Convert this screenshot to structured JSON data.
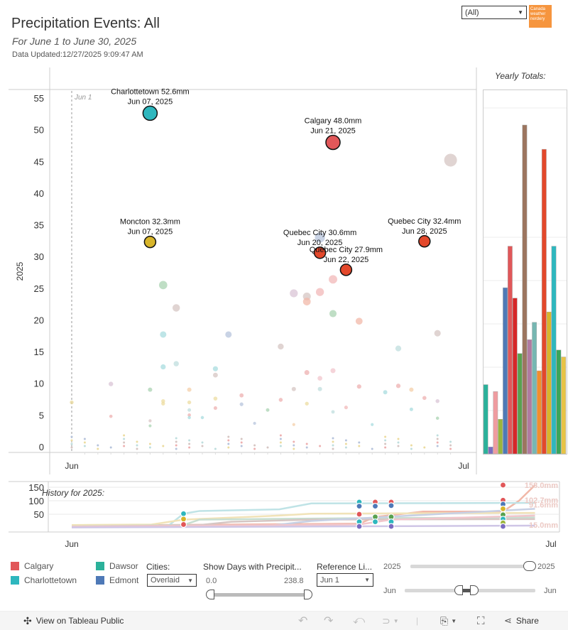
{
  "header": {
    "title": "Precipitation Events: All",
    "subtitle": "For June 1 to June 30, 2025",
    "updated": "Data Updated:12/27/2025 9:09:47 AM",
    "city_filter": "(All)",
    "logo_text": "Canada weather nerdery"
  },
  "yearly_totals_title": "Yearly Totals:",
  "history_title": "History for 2025:",
  "colors": {
    "Calgary": "#e15759",
    "Charlottetown": "#2eb7be",
    "Dawson": "#2bb19a",
    "Edmonton": "#4e79b7",
    "Moncton": "#d8b52a",
    "Quebec City": "#e3482b",
    "neutral": "#b8a9a4"
  },
  "chart_data": [
    {
      "type": "scatter",
      "title": "Precipitation Events: All",
      "xlabel": "",
      "ylabel": "2025",
      "x_ticks": [
        "Jun",
        "Jul"
      ],
      "y_ticks": [
        0,
        5,
        10,
        15,
        20,
        25,
        30,
        35,
        40,
        45,
        50,
        55
      ],
      "ylim": [
        0,
        56
      ],
      "xlim_days": [
        1,
        31
      ],
      "reference_line": {
        "label": "Jun 1",
        "day": 1
      },
      "highlighted": [
        {
          "city": "Charlottetown",
          "value": 52.6,
          "day": 7,
          "label": "Charlottetown 52.6mm",
          "date": "Jun 07, 2025"
        },
        {
          "city": "Moncton",
          "value": 32.3,
          "day": 7,
          "label": "Moncton 32.3mm",
          "date": "Jun 07, 2025"
        },
        {
          "city": "Calgary",
          "value": 48.0,
          "day": 21,
          "label": "Calgary 48.0mm",
          "date": "Jun 21, 2025"
        },
        {
          "city": "Quebec City",
          "value": 30.6,
          "day": 20,
          "label": "Quebec City 30.6mm",
          "date": "Jun 20, 2025"
        },
        {
          "city": "Quebec City",
          "value": 27.9,
          "day": 22,
          "label": "Quebec City 27.9mm",
          "date": "Jun 22, 2025"
        },
        {
          "city": "Quebec City",
          "value": 32.4,
          "day": 28,
          "label": "Quebec City 32.4mm",
          "date": "Jun 28, 2025"
        }
      ],
      "faded_points": [
        {
          "day": 1,
          "value": 7.0,
          "color": "#e8d89a"
        },
        {
          "day": 4,
          "value": 9.9,
          "color": "#d9c4d6"
        },
        {
          "day": 4,
          "value": 4.8,
          "color": "#eeb0b0"
        },
        {
          "day": 7,
          "value": 9.0,
          "color": "#a9d3b2"
        },
        {
          "day": 7,
          "value": 4.1,
          "color": "#d9c4c4"
        },
        {
          "day": 7,
          "value": 3.3,
          "color": "#a9d3b2"
        },
        {
          "day": 8,
          "value": 25.5,
          "color": "#a9d3b2"
        },
        {
          "day": 8,
          "value": 17.7,
          "color": "#a8dcdf"
        },
        {
          "day": 8,
          "value": 12.6,
          "color": "#a8dcdf"
        },
        {
          "day": 8,
          "value": 7.2,
          "color": "#ecdca0"
        },
        {
          "day": 8,
          "value": 6.8,
          "color": "#ecdca0"
        },
        {
          "day": 9,
          "value": 21.9,
          "color": "#d6c6c3"
        },
        {
          "day": 9,
          "value": 13.1,
          "color": "#bfdede"
        },
        {
          "day": 10,
          "value": 9.0,
          "color": "#f4cfa8"
        },
        {
          "day": 10,
          "value": 7.0,
          "color": "#ecdca0"
        },
        {
          "day": 10,
          "value": 5.8,
          "color": "#bfdede"
        },
        {
          "day": 10,
          "value": 5.0,
          "color": "#eeb0b0"
        },
        {
          "day": 10,
          "value": 4.6,
          "color": "#a8dcdf"
        },
        {
          "day": 11,
          "value": 4.6,
          "color": "#a8dcdf"
        },
        {
          "day": 12,
          "value": 12.3,
          "color": "#a8dcdf"
        },
        {
          "day": 12,
          "value": 11.3,
          "color": "#d6c6c3"
        },
        {
          "day": 12,
          "value": 7.6,
          "color": "#ecdca0"
        },
        {
          "day": 12,
          "value": 6.1,
          "color": "#eeb0b0"
        },
        {
          "day": 13,
          "value": 17.7,
          "color": "#b7c4dc"
        },
        {
          "day": 14,
          "value": 8.1,
          "color": "#eeb0b0"
        },
        {
          "day": 14,
          "value": 6.7,
          "color": "#b7c4dc"
        },
        {
          "day": 15,
          "value": 3.7,
          "color": "#b7c4dc"
        },
        {
          "day": 16,
          "value": 5.8,
          "color": "#a9d3b2"
        },
        {
          "day": 17,
          "value": 15.8,
          "color": "#d6c6c3"
        },
        {
          "day": 17,
          "value": 7.4,
          "color": "#eeb0b0"
        },
        {
          "day": 18,
          "value": 24.2,
          "color": "#d9c4d6"
        },
        {
          "day": 18,
          "value": 9.1,
          "color": "#d6c6c3"
        },
        {
          "day": 18,
          "value": 3.5,
          "color": "#f4cfa8"
        },
        {
          "day": 19,
          "value": 23.7,
          "color": "#d6c6c3"
        },
        {
          "day": 19,
          "value": 22.9,
          "color": "#f1b8a8"
        },
        {
          "day": 19,
          "value": 11.7,
          "color": "#eeb0b0"
        },
        {
          "day": 19,
          "value": 6.8,
          "color": "#ecdca0"
        },
        {
          "day": 20,
          "value": 24.4,
          "color": "#f1b8b8"
        },
        {
          "day": 20,
          "value": 33.0,
          "color": "#b7c4dc"
        },
        {
          "day": 20,
          "value": 10.8,
          "color": "#f1c6cc"
        },
        {
          "day": 20,
          "value": 9.1,
          "color": "#bfdede"
        },
        {
          "day": 21,
          "value": 26.4,
          "color": "#f1b8b8"
        },
        {
          "day": 21,
          "value": 21.0,
          "color": "#a9d3b2"
        },
        {
          "day": 21,
          "value": 12.0,
          "color": "#f1c6cc"
        },
        {
          "day": 21,
          "value": 5.5,
          "color": "#bfdede"
        },
        {
          "day": 22,
          "value": 6.2,
          "color": "#f1b8b8"
        },
        {
          "day": 23,
          "value": 19.8,
          "color": "#f1b8a8"
        },
        {
          "day": 23,
          "value": 9.5,
          "color": "#eeb0b0"
        },
        {
          "day": 24,
          "value": 3.5,
          "color": "#a8dcdf"
        },
        {
          "day": 25,
          "value": 8.6,
          "color": "#a8dcdf"
        },
        {
          "day": 26,
          "value": 15.5,
          "color": "#bfdede"
        },
        {
          "day": 26,
          "value": 9.6,
          "color": "#eeb0b0"
        },
        {
          "day": 27,
          "value": 9.0,
          "color": "#f4cfa8"
        },
        {
          "day": 27,
          "value": 5.9,
          "color": "#a8dcdf"
        },
        {
          "day": 28,
          "value": 7.7,
          "color": "#eeb0b0"
        },
        {
          "day": 29,
          "value": 17.9,
          "color": "#d6c6c3"
        },
        {
          "day": 29,
          "value": 7.2,
          "color": "#d9c4d6"
        },
        {
          "day": 29,
          "value": 4.5,
          "color": "#a9d3b2"
        },
        {
          "day": 30,
          "value": 45.2,
          "color": "#d6c6c3"
        }
      ]
    },
    {
      "type": "bar",
      "title": "Yearly Totals:",
      "note": "clipped bars; labels overlapping",
      "series": [
        {
          "color": "#2bb19a",
          "value": 0.2
        },
        {
          "color": "#7b6cc0",
          "value": 0.02
        },
        {
          "color": "#ef9ca0",
          "value": 0.18
        },
        {
          "color": "#9bb53b",
          "value": 0.1
        },
        {
          "color": "#4e79b7",
          "value": 0.48
        },
        {
          "color": "#e15759",
          "value": 0.6
        },
        {
          "color": "#d62728",
          "value": 0.45
        },
        {
          "color": "#59a14f",
          "value": 0.29
        },
        {
          "color": "#9c755f",
          "value": 0.95
        },
        {
          "color": "#b07aa1",
          "value": 0.33
        },
        {
          "color": "#76b7b2",
          "value": 0.38
        },
        {
          "color": "#f28e2b",
          "value": 0.24
        },
        {
          "color": "#e3482b",
          "value": 0.88
        },
        {
          "color": "#d8b52a",
          "value": 0.41
        },
        {
          "color": "#2eb7be",
          "value": 0.6
        },
        {
          "color": "#3ba55a",
          "value": 0.3
        },
        {
          "color": "#e8c346",
          "value": 0.28
        }
      ]
    },
    {
      "type": "line",
      "title": "History for 2025:",
      "y_ticks": [
        50,
        100,
        150
      ],
      "x_ticks": [
        "Jun",
        "Jul"
      ],
      "ylim": [
        0,
        160
      ],
      "end_labels": [
        "158.0mm",
        "102.7mm",
        "91.6mm",
        "15.0mm"
      ]
    }
  ],
  "legend": [
    {
      "name": "Calgary",
      "color": "#e15759"
    },
    {
      "name": "Charlottetown",
      "color": "#2eb7be"
    },
    {
      "name": "Dawsor",
      "color": "#2bb19a"
    },
    {
      "name": "Edmont",
      "color": "#4e79b7"
    }
  ],
  "controls": {
    "cities_label": "Cities:",
    "cities_value": "Overlaid",
    "show_days_label": "Show Days with Precipit...",
    "show_days_min": "0.0",
    "show_days_max": "238.8",
    "ref_line_label": "Reference Li...",
    "ref_line_value": "Jun 1",
    "year_min": "2025",
    "year_max": "2025",
    "month_min": "Jun",
    "month_max": "Jun"
  },
  "footer": {
    "view_on": "View on Tableau Public",
    "share": "Share"
  }
}
